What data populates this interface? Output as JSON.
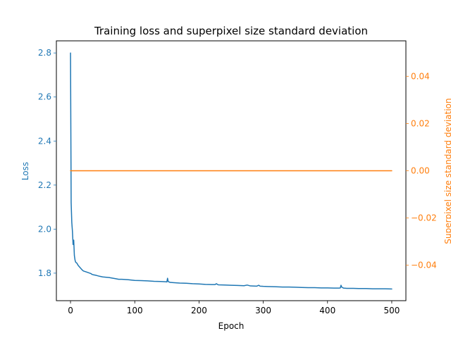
{
  "chart_data": {
    "type": "line",
    "title": "Training loss and superpixel size standard deviation",
    "xlabel": "Epoch",
    "xlim": [
      -22,
      522
    ],
    "x_ticks": [
      0,
      100,
      200,
      300,
      400,
      500
    ],
    "x_tick_labels": [
      "0",
      "100",
      "200",
      "300",
      "400",
      "500"
    ],
    "y_left": {
      "label": "Loss",
      "color": "#1f77b4",
      "lim": [
        1.675,
        2.855
      ],
      "ticks": [
        1.8,
        2.0,
        2.2,
        2.4,
        2.6,
        2.8
      ],
      "tick_labels": [
        "1.8",
        "2.0",
        "2.2",
        "2.4",
        "2.6",
        "2.8"
      ]
    },
    "y_right": {
      "label": "Superpixel size standard deviation",
      "color": "#ff7f0e",
      "lim": [
        -0.055,
        0.055
      ],
      "ticks": [
        -0.04,
        -0.02,
        0.0,
        0.02,
        0.04
      ],
      "tick_labels": [
        "−0.04",
        "−0.02",
        "0.00",
        "0.02",
        "0.04"
      ]
    },
    "series": [
      {
        "axis": "left",
        "color": "#1f77b4",
        "x": [
          0,
          1,
          2,
          3,
          4,
          5,
          6,
          7,
          8,
          10,
          12,
          15,
          18,
          20,
          25,
          30,
          32,
          33,
          35,
          40,
          45,
          50,
          60,
          70,
          75,
          80,
          90,
          100,
          110,
          120,
          130,
          140,
          148,
          150,
          151,
          152,
          155,
          160,
          170,
          180,
          190,
          200,
          210,
          220,
          225,
          227,
          230,
          240,
          250,
          260,
          270,
          275,
          280,
          290,
          293,
          295,
          300,
          310,
          320,
          330,
          340,
          350,
          360,
          370,
          380,
          390,
          400,
          410,
          418,
          420,
          421,
          422,
          425,
          430,
          440,
          450,
          460,
          470,
          480,
          490,
          500
        ],
        "values": [
          2.8,
          2.12,
          2.03,
          1.99,
          1.93,
          1.95,
          1.88,
          1.86,
          1.85,
          1.845,
          1.835,
          1.825,
          1.815,
          1.81,
          1.805,
          1.8,
          1.798,
          1.795,
          1.793,
          1.79,
          1.786,
          1.783,
          1.78,
          1.775,
          1.772,
          1.772,
          1.77,
          1.767,
          1.766,
          1.765,
          1.763,
          1.762,
          1.761,
          1.76,
          1.777,
          1.762,
          1.758,
          1.757,
          1.755,
          1.754,
          1.752,
          1.751,
          1.749,
          1.748,
          1.748,
          1.752,
          1.747,
          1.746,
          1.745,
          1.744,
          1.743,
          1.746,
          1.742,
          1.741,
          1.745,
          1.741,
          1.74,
          1.739,
          1.738,
          1.737,
          1.737,
          1.736,
          1.735,
          1.734,
          1.734,
          1.733,
          1.733,
          1.732,
          1.732,
          1.733,
          1.745,
          1.737,
          1.732,
          1.731,
          1.731,
          1.73,
          1.73,
          1.729,
          1.729,
          1.729,
          1.728
        ]
      },
      {
        "axis": "right",
        "color": "#ff7f0e",
        "x": [
          0,
          500
        ],
        "values": [
          0.0,
          0.0
        ]
      }
    ],
    "grid": false,
    "legend": "none"
  }
}
